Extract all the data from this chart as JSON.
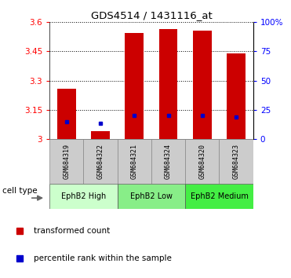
{
  "title": "GDS4514 / 1431116_at",
  "samples": [
    "GSM684319",
    "GSM684322",
    "GSM684321",
    "GSM684324",
    "GSM684320",
    "GSM684323"
  ],
  "red_values": [
    3.26,
    3.04,
    3.545,
    3.565,
    3.555,
    3.44
  ],
  "blue_values": [
    3.09,
    3.08,
    3.12,
    3.12,
    3.12,
    3.115
  ],
  "ymin": 3.0,
  "ymax": 3.6,
  "yticks_left": [
    3.0,
    3.15,
    3.3,
    3.45,
    3.6
  ],
  "ytick_labels_left": [
    "3",
    "3.15",
    "3.3",
    "3.45",
    "3.6"
  ],
  "yticks_right_pct": [
    0,
    25,
    50,
    75,
    100
  ],
  "ytick_labels_right": [
    "0",
    "25",
    "50",
    "75",
    "100%"
  ],
  "group_labels": [
    "EphB2 High",
    "EphB2 Low",
    "EphB2 Medium"
  ],
  "group_ranges": [
    [
      0,
      2
    ],
    [
      2,
      4
    ],
    [
      4,
      6
    ]
  ],
  "group_colors": [
    "#ccffcc",
    "#77ee77",
    "#44dd44"
  ],
  "bar_color": "#cc0000",
  "blue_color": "#0000cc",
  "bar_width": 0.55,
  "sample_box_color": "#cccccc",
  "legend_red_label": "transformed count",
  "legend_blue_label": "percentile rank within the sample",
  "cell_type_label": "cell type"
}
